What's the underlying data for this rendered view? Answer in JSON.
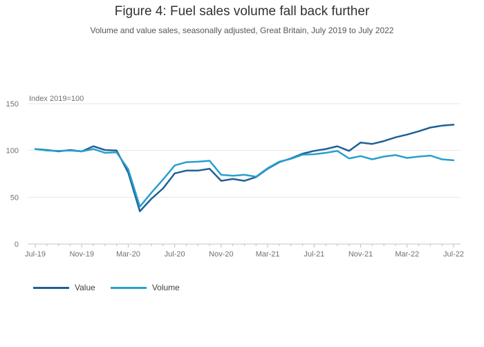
{
  "chart_data": {
    "type": "line",
    "title": "Figure 4: Fuel sales volume fall back further",
    "subtitle": "Volume and value sales, seasonally adjusted, Great Britain, July 2019 to July 2022",
    "ylabel": "Index 2019=100",
    "xlabel": "",
    "ylim": [
      0,
      150
    ],
    "yticks": [
      0,
      50,
      100,
      150
    ],
    "grid": true,
    "legend_position": "bottom-left",
    "x": [
      "Jul-19",
      "Aug-19",
      "Sep-19",
      "Oct-19",
      "Nov-19",
      "Dec-19",
      "Jan-20",
      "Feb-20",
      "Mar-20",
      "Apr-20",
      "May-20",
      "Jun-20",
      "Jul-20",
      "Aug-20",
      "Sep-20",
      "Oct-20",
      "Nov-20",
      "Dec-20",
      "Jan-21",
      "Feb-21",
      "Mar-21",
      "Apr-21",
      "May-21",
      "Jun-21",
      "Jul-21",
      "Aug-21",
      "Sep-21",
      "Oct-21",
      "Nov-21",
      "Dec-21",
      "Jan-22",
      "Feb-22",
      "Mar-22",
      "Apr-22",
      "May-22",
      "Jun-22",
      "Jul-22"
    ],
    "xtick_labels": [
      "Jul-19",
      "Nov-19",
      "Mar-20",
      "Jul-20",
      "Nov-20",
      "Mar-21",
      "Jul-21",
      "Nov-21",
      "Mar-22",
      "Jul-22"
    ],
    "xtick_indices": [
      0,
      4,
      8,
      12,
      16,
      20,
      24,
      28,
      32,
      36
    ],
    "series": [
      {
        "name": "Value",
        "color": "#206095",
        "values": [
          101.5,
          100.5,
          99,
          100.5,
          99,
          104.5,
          100.5,
          100,
          76.5,
          35,
          48.5,
          59.5,
          75.5,
          78.5,
          78.5,
          80.5,
          67.5,
          69.5,
          67.5,
          71.5,
          80.5,
          87.5,
          91.5,
          96.5,
          99.5,
          101.5,
          104.5,
          99.5,
          108.5,
          107,
          110,
          114,
          117,
          120.5,
          124.5,
          126.5,
          127.5
        ]
      },
      {
        "name": "Volume",
        "color": "#27a0cc",
        "values": [
          101.5,
          100,
          99.5,
          100,
          99,
          101.5,
          97.5,
          98,
          80,
          40,
          55,
          69,
          84,
          87.5,
          88,
          89,
          74,
          73,
          74,
          72,
          81,
          88,
          91,
          95.5,
          96,
          97.5,
          99.5,
          91.5,
          94,
          90.5,
          93.5,
          95,
          92,
          93.5,
          94.5,
          90.5,
          89.5
        ]
      }
    ]
  }
}
